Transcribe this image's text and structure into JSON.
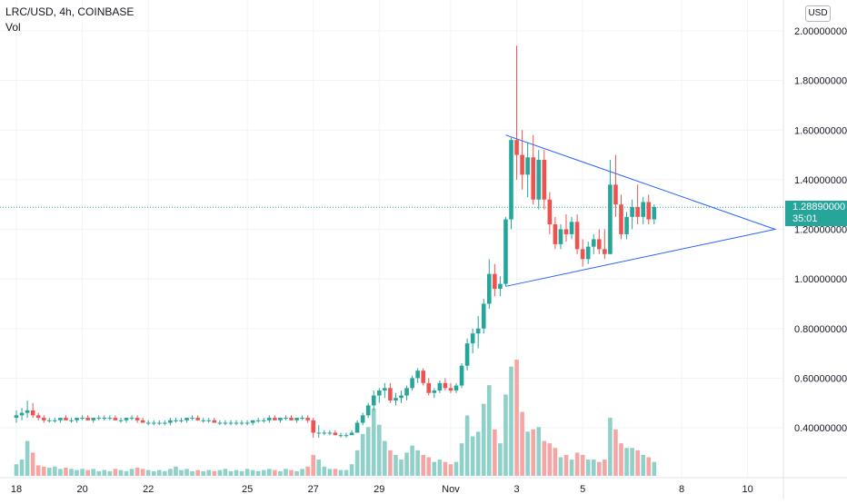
{
  "header": {
    "symbol_title": "LRC/USD, 4h, COINBASE",
    "volume_label": "Vol",
    "currency": "USD"
  },
  "last_price": {
    "value": "1.28890000",
    "countdown": "35:01",
    "value_number": 1.2889
  },
  "colors": {
    "up": "#26a69a",
    "down": "#ef5350",
    "volume_up": "#8fd1c9",
    "volume_down": "#f5a5a3",
    "trendline": "#2962ff",
    "grid": "#f0f3fa",
    "axis_text": "#131722",
    "last_price": "#26a69a"
  },
  "icons": {
    "triangle_pattern": "trendline-triangle"
  },
  "chart_data": {
    "type": "candlestick",
    "title": "LRC/USD, 4h, COINBASE",
    "xlabel": "",
    "ylabel": "",
    "y_range": [
      0.2,
      2.05
    ],
    "y_ticks": [
      {
        "value": 2.0,
        "label": "2.00000000"
      },
      {
        "value": 1.8,
        "label": "1.80000000"
      },
      {
        "value": 1.6,
        "label": "1.60000000"
      },
      {
        "value": 1.4,
        "label": "1.40000000"
      },
      {
        "value": 1.2,
        "label": "1.20000000"
      },
      {
        "value": 1.0,
        "label": "1.00000000"
      },
      {
        "value": 0.8,
        "label": "0.80000000"
      },
      {
        "value": 0.6,
        "label": "0.60000000"
      },
      {
        "value": 0.4,
        "label": "0.40000000"
      }
    ],
    "x_ticks": [
      {
        "index": 0,
        "label": "18"
      },
      {
        "index": 12,
        "label": "20"
      },
      {
        "index": 24,
        "label": "22"
      },
      {
        "index": 42,
        "label": "25"
      },
      {
        "index": 54,
        "label": "27"
      },
      {
        "index": 66,
        "label": "29"
      },
      {
        "index": 79,
        "label": "Nov"
      },
      {
        "index": 91,
        "label": "3"
      },
      {
        "index": 103,
        "label": "5"
      },
      {
        "index": 121,
        "label": "8"
      },
      {
        "index": 133,
        "label": "10"
      }
    ],
    "grid": true,
    "volume_max": 100,
    "candles": [
      [
        0.44,
        0.47,
        0.42,
        0.45,
        10
      ],
      [
        0.45,
        0.48,
        0.43,
        0.46,
        14
      ],
      [
        0.46,
        0.51,
        0.44,
        0.47,
        30
      ],
      [
        0.47,
        0.5,
        0.44,
        0.45,
        20
      ],
      [
        0.45,
        0.46,
        0.43,
        0.44,
        9
      ],
      [
        0.44,
        0.45,
        0.42,
        0.43,
        8
      ],
      [
        0.43,
        0.44,
        0.42,
        0.43,
        7
      ],
      [
        0.43,
        0.44,
        0.42,
        0.43,
        8
      ],
      [
        0.43,
        0.44,
        0.42,
        0.44,
        6
      ],
      [
        0.44,
        0.45,
        0.43,
        0.43,
        7
      ],
      [
        0.43,
        0.44,
        0.42,
        0.43,
        6
      ],
      [
        0.43,
        0.44,
        0.42,
        0.44,
        5
      ],
      [
        0.44,
        0.45,
        0.43,
        0.44,
        6
      ],
      [
        0.44,
        0.45,
        0.43,
        0.43,
        5
      ],
      [
        0.43,
        0.44,
        0.42,
        0.44,
        6
      ],
      [
        0.44,
        0.45,
        0.43,
        0.44,
        4
      ],
      [
        0.44,
        0.45,
        0.43,
        0.44,
        5
      ],
      [
        0.44,
        0.45,
        0.43,
        0.44,
        4
      ],
      [
        0.44,
        0.45,
        0.43,
        0.43,
        6
      ],
      [
        0.43,
        0.44,
        0.42,
        0.43,
        5
      ],
      [
        0.43,
        0.44,
        0.42,
        0.44,
        4
      ],
      [
        0.44,
        0.45,
        0.43,
        0.44,
        6
      ],
      [
        0.44,
        0.45,
        0.42,
        0.43,
        7
      ],
      [
        0.43,
        0.44,
        0.42,
        0.42,
        6
      ],
      [
        0.42,
        0.43,
        0.41,
        0.42,
        5
      ],
      [
        0.42,
        0.43,
        0.41,
        0.42,
        4
      ],
      [
        0.42,
        0.43,
        0.41,
        0.42,
        5
      ],
      [
        0.42,
        0.43,
        0.41,
        0.42,
        4
      ],
      [
        0.42,
        0.44,
        0.41,
        0.43,
        6
      ],
      [
        0.43,
        0.44,
        0.42,
        0.43,
        8
      ],
      [
        0.43,
        0.44,
        0.42,
        0.43,
        5
      ],
      [
        0.43,
        0.44,
        0.42,
        0.44,
        6
      ],
      [
        0.44,
        0.45,
        0.43,
        0.44,
        4
      ],
      [
        0.44,
        0.45,
        0.43,
        0.43,
        5
      ],
      [
        0.43,
        0.44,
        0.42,
        0.43,
        4
      ],
      [
        0.43,
        0.44,
        0.42,
        0.43,
        5
      ],
      [
        0.43,
        0.44,
        0.42,
        0.42,
        4
      ],
      [
        0.42,
        0.43,
        0.41,
        0.42,
        5
      ],
      [
        0.42,
        0.43,
        0.41,
        0.42,
        6
      ],
      [
        0.42,
        0.43,
        0.41,
        0.42,
        4
      ],
      [
        0.42,
        0.43,
        0.41,
        0.42,
        5
      ],
      [
        0.42,
        0.43,
        0.41,
        0.42,
        4
      ],
      [
        0.42,
        0.43,
        0.41,
        0.42,
        6
      ],
      [
        0.42,
        0.43,
        0.41,
        0.43,
        5
      ],
      [
        0.43,
        0.44,
        0.42,
        0.43,
        4
      ],
      [
        0.43,
        0.44,
        0.42,
        0.43,
        5
      ],
      [
        0.43,
        0.45,
        0.42,
        0.44,
        6
      ],
      [
        0.44,
        0.45,
        0.43,
        0.43,
        5
      ],
      [
        0.43,
        0.44,
        0.42,
        0.44,
        4
      ],
      [
        0.44,
        0.45,
        0.43,
        0.44,
        6
      ],
      [
        0.44,
        0.45,
        0.43,
        0.43,
        5
      ],
      [
        0.43,
        0.44,
        0.42,
        0.44,
        4
      ],
      [
        0.44,
        0.45,
        0.43,
        0.44,
        6
      ],
      [
        0.44,
        0.45,
        0.42,
        0.43,
        8
      ],
      [
        0.43,
        0.44,
        0.36,
        0.38,
        18
      ],
      [
        0.38,
        0.41,
        0.36,
        0.38,
        14
      ],
      [
        0.38,
        0.39,
        0.37,
        0.38,
        8
      ],
      [
        0.38,
        0.39,
        0.37,
        0.38,
        6
      ],
      [
        0.38,
        0.39,
        0.37,
        0.37,
        6
      ],
      [
        0.37,
        0.38,
        0.36,
        0.37,
        5
      ],
      [
        0.37,
        0.38,
        0.36,
        0.37,
        5
      ],
      [
        0.37,
        0.39,
        0.37,
        0.38,
        10
      ],
      [
        0.38,
        0.43,
        0.38,
        0.42,
        22
      ],
      [
        0.42,
        0.46,
        0.41,
        0.45,
        36
      ],
      [
        0.45,
        0.5,
        0.44,
        0.49,
        42
      ],
      [
        0.49,
        0.55,
        0.47,
        0.53,
        58
      ],
      [
        0.53,
        0.56,
        0.5,
        0.55,
        44
      ],
      [
        0.55,
        0.58,
        0.52,
        0.56,
        30
      ],
      [
        0.56,
        0.58,
        0.5,
        0.51,
        22
      ],
      [
        0.51,
        0.54,
        0.49,
        0.52,
        18
      ],
      [
        0.52,
        0.55,
        0.5,
        0.53,
        14
      ],
      [
        0.53,
        0.57,
        0.51,
        0.56,
        20
      ],
      [
        0.56,
        0.61,
        0.55,
        0.6,
        26
      ],
      [
        0.6,
        0.64,
        0.58,
        0.63,
        22
      ],
      [
        0.63,
        0.64,
        0.57,
        0.58,
        18
      ],
      [
        0.58,
        0.6,
        0.53,
        0.54,
        16
      ],
      [
        0.54,
        0.56,
        0.52,
        0.55,
        12
      ],
      [
        0.55,
        0.59,
        0.54,
        0.58,
        14
      ],
      [
        0.58,
        0.6,
        0.55,
        0.56,
        12
      ],
      [
        0.56,
        0.58,
        0.54,
        0.55,
        10
      ],
      [
        0.55,
        0.58,
        0.54,
        0.57,
        12
      ],
      [
        0.57,
        0.66,
        0.56,
        0.65,
        28
      ],
      [
        0.65,
        0.76,
        0.63,
        0.74,
        52
      ],
      [
        0.74,
        0.8,
        0.7,
        0.78,
        34
      ],
      [
        0.78,
        0.85,
        0.72,
        0.8,
        38
      ],
      [
        0.8,
        0.92,
        0.78,
        0.9,
        62
      ],
      [
        0.9,
        1.08,
        0.88,
        1.02,
        78
      ],
      [
        1.02,
        1.06,
        0.93,
        0.96,
        40
      ],
      [
        0.96,
        1.01,
        0.93,
        0.98,
        28
      ],
      [
        0.98,
        1.25,
        0.97,
        1.24,
        70
      ],
      [
        1.24,
        1.57,
        1.2,
        1.56,
        94
      ],
      [
        1.56,
        1.94,
        1.4,
        1.5,
        100
      ],
      [
        1.5,
        1.6,
        1.36,
        1.42,
        55
      ],
      [
        1.42,
        1.55,
        1.33,
        1.49,
        38
      ],
      [
        1.49,
        1.58,
        1.3,
        1.32,
        40
      ],
      [
        1.32,
        1.52,
        1.28,
        1.48,
        42
      ],
      [
        1.48,
        1.52,
        1.28,
        1.32,
        30
      ],
      [
        1.32,
        1.35,
        1.18,
        1.22,
        28
      ],
      [
        1.22,
        1.25,
        1.12,
        1.14,
        24
      ],
      [
        1.14,
        1.22,
        1.12,
        1.2,
        16
      ],
      [
        1.2,
        1.26,
        1.15,
        1.18,
        18
      ],
      [
        1.18,
        1.25,
        1.16,
        1.23,
        14
      ],
      [
        1.23,
        1.26,
        1.1,
        1.12,
        20
      ],
      [
        1.12,
        1.16,
        1.05,
        1.08,
        18
      ],
      [
        1.08,
        1.15,
        1.06,
        1.13,
        14
      ],
      [
        1.13,
        1.18,
        1.1,
        1.16,
        14
      ],
      [
        1.16,
        1.2,
        1.1,
        1.12,
        12
      ],
      [
        1.12,
        1.2,
        1.08,
        1.1,
        14
      ],
      [
        1.1,
        1.48,
        1.1,
        1.38,
        50
      ],
      [
        1.38,
        1.5,
        1.25,
        1.3,
        40
      ],
      [
        1.3,
        1.34,
        1.16,
        1.18,
        28
      ],
      [
        1.18,
        1.27,
        1.16,
        1.25,
        24
      ],
      [
        1.25,
        1.32,
        1.2,
        1.29,
        24
      ],
      [
        1.29,
        1.38,
        1.22,
        1.25,
        22
      ],
      [
        1.25,
        1.33,
        1.22,
        1.31,
        18
      ],
      [
        1.31,
        1.34,
        1.22,
        1.24,
        16
      ],
      [
        1.24,
        1.3,
        1.22,
        1.29,
        12
      ]
    ],
    "annotations": [
      {
        "type": "triangle",
        "points": [
          [
            89,
            1.58
          ],
          [
            138,
            1.2
          ],
          [
            89,
            0.97
          ]
        ]
      },
      {
        "type": "horizontal_dotted",
        "value": 1.2889
      }
    ]
  }
}
